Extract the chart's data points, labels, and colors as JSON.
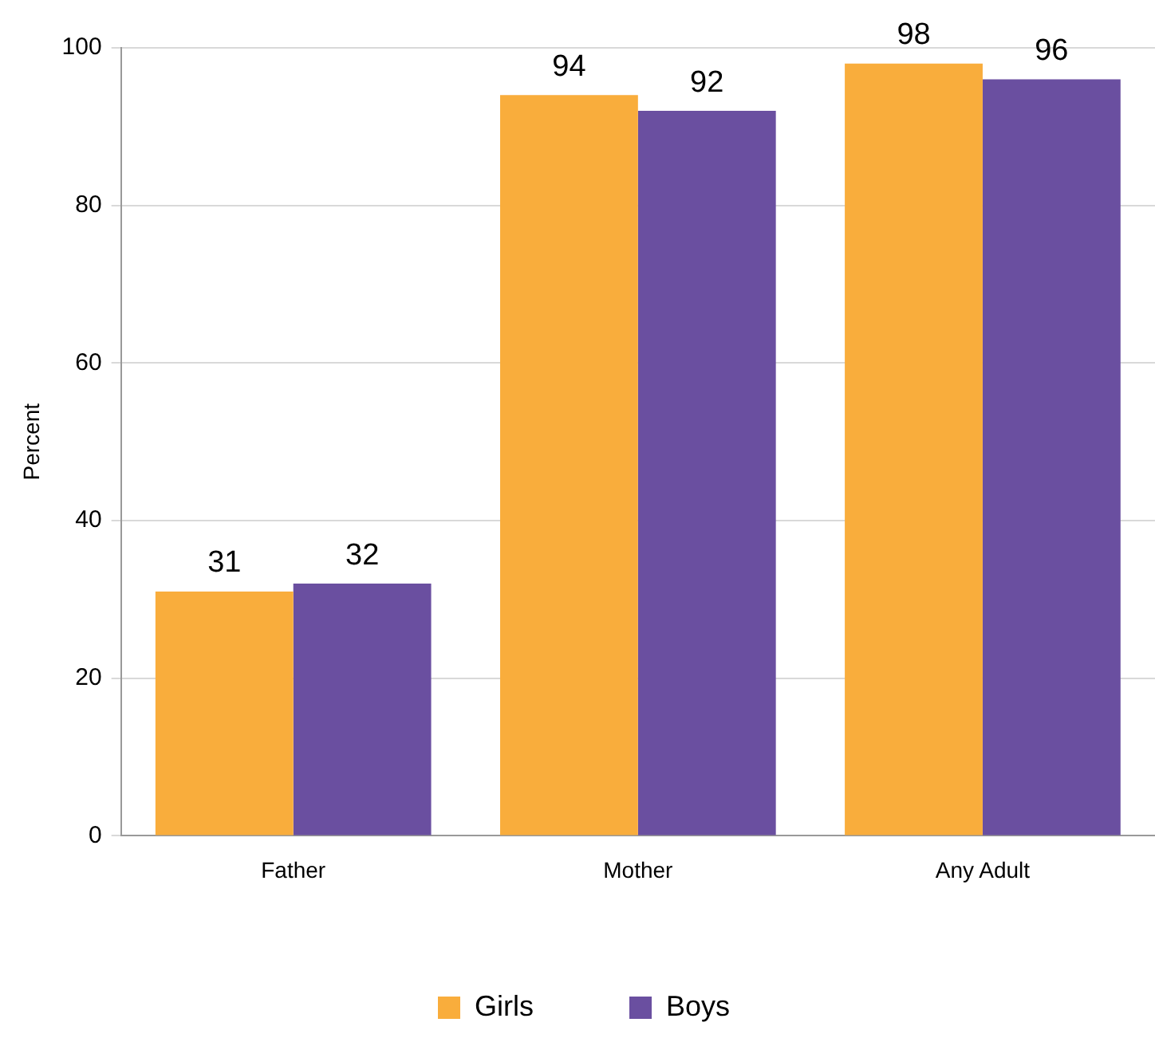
{
  "chart_data": {
    "type": "bar",
    "ylabel": "Percent",
    "categories": [
      "Father",
      "Mother",
      "Any Adult"
    ],
    "series": [
      {
        "name": "Girls",
        "color": "#f9ad3c",
        "values": [
          31,
          94,
          98
        ]
      },
      {
        "name": "Boys",
        "color": "#6a4fa0",
        "values": [
          32,
          92,
          96
        ]
      }
    ],
    "ylim": [
      0,
      100
    ],
    "yticks": [
      0,
      20,
      40,
      60,
      80,
      100
    ],
    "grid": "y",
    "legend": "bottom",
    "data_labels": true
  }
}
